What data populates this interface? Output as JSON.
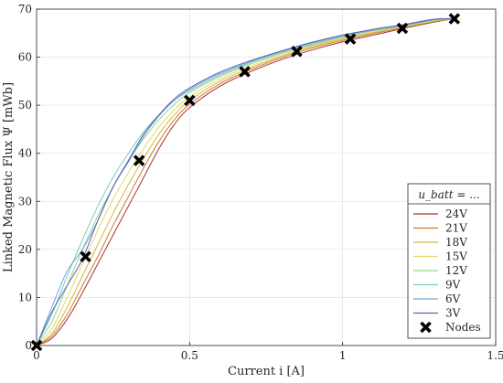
{
  "chart_data": {
    "type": "line",
    "xlabel": "Current i [A]",
    "ylabel": "Linked Magnetic Flux Ψ [mWb]",
    "xlim": [
      0,
      1.5
    ],
    "ylim": [
      0,
      70
    ],
    "xticks": [
      "0",
      "0.5",
      "1",
      "1.5"
    ],
    "xtick_values": [
      0,
      0.5,
      1,
      1.5
    ],
    "yticks": [
      "0",
      "10",
      "20",
      "30",
      "40",
      "50",
      "60",
      "70"
    ],
    "ytick_values": [
      0,
      10,
      20,
      30,
      40,
      50,
      60,
      70
    ],
    "grid": true,
    "legend": {
      "title": "u_batt = ...",
      "placement": "lower-right"
    },
    "series": [
      {
        "name": "24V",
        "color": "#a8322d",
        "x": [
          0,
          0.05,
          0.1,
          0.15,
          0.2,
          0.25,
          0.3,
          0.35,
          0.4,
          0.45,
          0.5,
          0.6,
          0.7,
          0.8,
          0.9,
          1.0,
          1.1,
          1.2,
          1.3,
          1.365
        ],
        "y": [
          0,
          1.5,
          5.5,
          11,
          17,
          23,
          29,
          35,
          41,
          46,
          49.5,
          54,
          57,
          59.5,
          61.5,
          63.2,
          64.6,
          66,
          67.3,
          68
        ]
      },
      {
        "name": "21V",
        "color": "#c97a2b",
        "x": [
          0,
          0.05,
          0.1,
          0.15,
          0.2,
          0.25,
          0.3,
          0.35,
          0.4,
          0.45,
          0.5,
          0.6,
          0.7,
          0.8,
          0.9,
          1.0,
          1.1,
          1.2,
          1.3,
          1.365
        ],
        "y": [
          0,
          2,
          6.5,
          12.5,
          18.5,
          25,
          31,
          37,
          42.5,
          47,
          50.2,
          54.5,
          57.4,
          59.9,
          61.9,
          63.5,
          64.9,
          66.2,
          67.4,
          68
        ]
      },
      {
        "name": "18V",
        "color": "#d6b43a",
        "x": [
          0,
          0.05,
          0.1,
          0.15,
          0.2,
          0.25,
          0.3,
          0.35,
          0.4,
          0.45,
          0.5,
          0.6,
          0.7,
          0.8,
          0.9,
          1.0,
          1.1,
          1.2,
          1.3,
          1.365
        ],
        "y": [
          0,
          2.5,
          8,
          14.5,
          21,
          27.5,
          33.5,
          39,
          44,
          48,
          51,
          55,
          57.8,
          60.2,
          62.2,
          63.8,
          65.1,
          66.3,
          67.5,
          68
        ]
      },
      {
        "name": "15V",
        "color": "#e3d968",
        "x": [
          0,
          0.05,
          0.1,
          0.15,
          0.2,
          0.25,
          0.3,
          0.35,
          0.4,
          0.45,
          0.5,
          0.6,
          0.7,
          0.8,
          0.9,
          1.0,
          1.1,
          1.2,
          1.3,
          1.365
        ],
        "y": [
          0,
          3.5,
          10,
          17,
          24,
          30.5,
          36,
          41,
          45.5,
          49,
          51.8,
          55.5,
          58.2,
          60.5,
          62.4,
          64,
          65.3,
          66.4,
          67.6,
          68
        ]
      },
      {
        "name": "12V",
        "color": "#9bd389",
        "x": [
          0,
          0.05,
          0.1,
          0.15,
          0.2,
          0.25,
          0.3,
          0.35,
          0.4,
          0.45,
          0.5,
          0.6,
          0.7,
          0.8,
          0.9,
          1.0,
          1.1,
          1.2,
          1.3,
          1.365
        ],
        "y": [
          0,
          5,
          12.5,
          20,
          27,
          33,
          38.5,
          43,
          47,
          50.2,
          52.6,
          56,
          58.6,
          60.8,
          62.6,
          64.2,
          65.5,
          66.5,
          67.7,
          68
        ]
      },
      {
        "name": "9V",
        "color": "#7fc7c4",
        "x": [
          0,
          0.05,
          0.1,
          0.15,
          0.2,
          0.25,
          0.3,
          0.35,
          0.4,
          0.45,
          0.5,
          0.6,
          0.7,
          0.8,
          0.9,
          1.0,
          1.1,
          1.2,
          1.3,
          1.365
        ],
        "y": [
          0,
          6.5,
          14.5,
          22,
          29,
          35,
          40,
          44.5,
          48,
          51,
          53,
          56.3,
          58.9,
          61,
          62.8,
          64.3,
          65.6,
          66.6,
          67.8,
          68
        ]
      },
      {
        "name": "6V",
        "color": "#6ea6d8",
        "x": [
          0,
          0.05,
          0.1,
          0.15,
          0.2,
          0.25,
          0.3,
          0.35,
          0.4,
          0.45,
          0.5,
          0.6,
          0.7,
          0.8,
          0.9,
          1.0,
          1.1,
          1.2,
          1.3,
          1.365
        ],
        "y": [
          0,
          8,
          15.5,
          20,
          26,
          33,
          38.2,
          43.5,
          47.8,
          51,
          53.3,
          56.6,
          59.1,
          61.2,
          63,
          64.5,
          65.7,
          66.7,
          67.8,
          68
        ]
      },
      {
        "name": "3V",
        "color": "#5a60b8",
        "x": [
          0,
          0.05,
          0.1,
          0.15,
          0.2,
          0.25,
          0.3,
          0.35,
          0.4,
          0.45,
          0.5,
          0.6,
          0.7,
          0.8,
          0.9,
          1.0,
          1.1,
          1.2,
          1.3,
          1.365
        ],
        "y": [
          0,
          7,
          12.5,
          18,
          26,
          33,
          38.5,
          44,
          48,
          51.3,
          53.6,
          56.9,
          59.3,
          61.3,
          63.1,
          64.6,
          65.8,
          66.8,
          67.9,
          68
        ]
      }
    ],
    "nodes": {
      "name": "Nodes",
      "x": [
        0,
        0.16,
        0.335,
        0.5,
        0.68,
        0.85,
        1.025,
        1.195,
        1.365
      ],
      "y": [
        0,
        18.5,
        38.5,
        51,
        57,
        61.2,
        63.8,
        66,
        68
      ]
    }
  }
}
